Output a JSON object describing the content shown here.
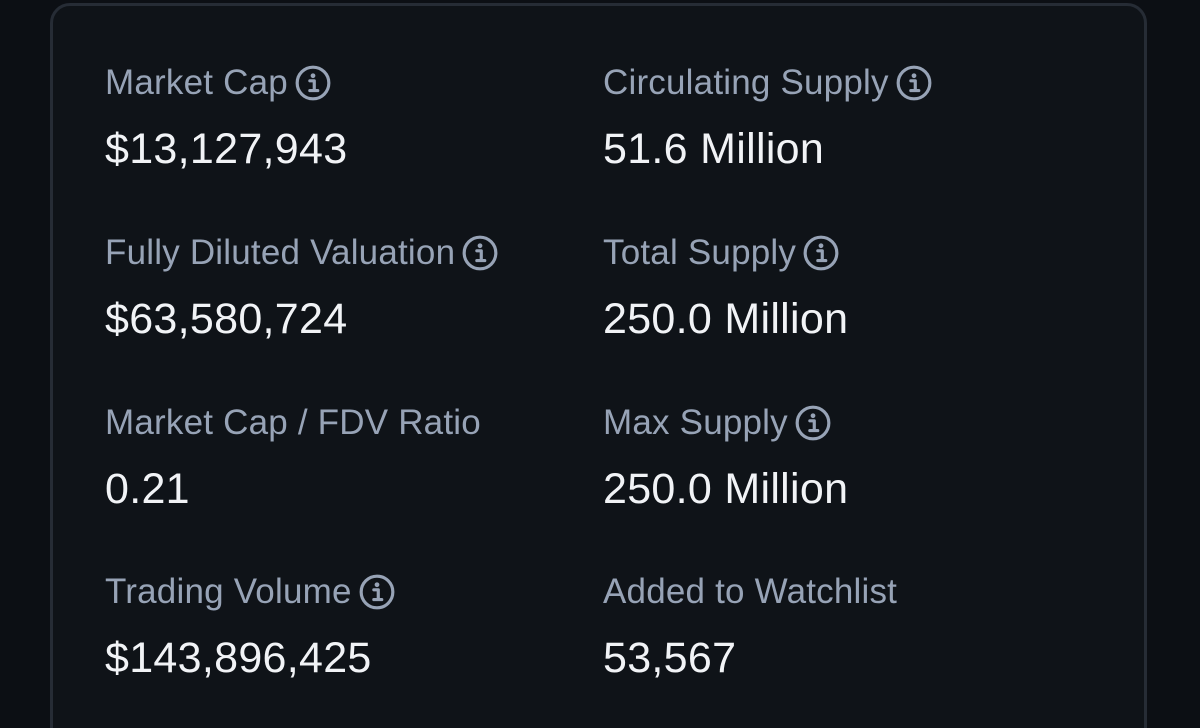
{
  "stats": {
    "market_cap": {
      "label": "Market Cap",
      "value": "$13,127,943",
      "icon": "info-icon"
    },
    "circulating_supply": {
      "label": "Circulating Supply",
      "value": "51.6 Million",
      "icon": "info-icon"
    },
    "fdv": {
      "label": "Fully Diluted Valuation",
      "value": "$63,580,724",
      "icon": "info-icon"
    },
    "total_supply": {
      "label": "Total Supply",
      "value": "250.0 Million",
      "icon": "info-icon"
    },
    "mcap_fdv_ratio": {
      "label": "Market Cap / FDV Ratio",
      "value": "0.21"
    },
    "max_supply": {
      "label": "Max Supply",
      "value": "250.0 Million",
      "icon": "info-icon"
    },
    "trading_volume": {
      "label": "Trading Volume",
      "value": "$143,896,425",
      "icon": "info-icon"
    },
    "watchlist": {
      "label": "Added to Watchlist",
      "value": "53,567"
    }
  },
  "colors": {
    "background": "#0c0f14",
    "card": "#0f1318",
    "border": "#262c35",
    "label": "#97a3b6",
    "value": "#f1f3f6"
  }
}
